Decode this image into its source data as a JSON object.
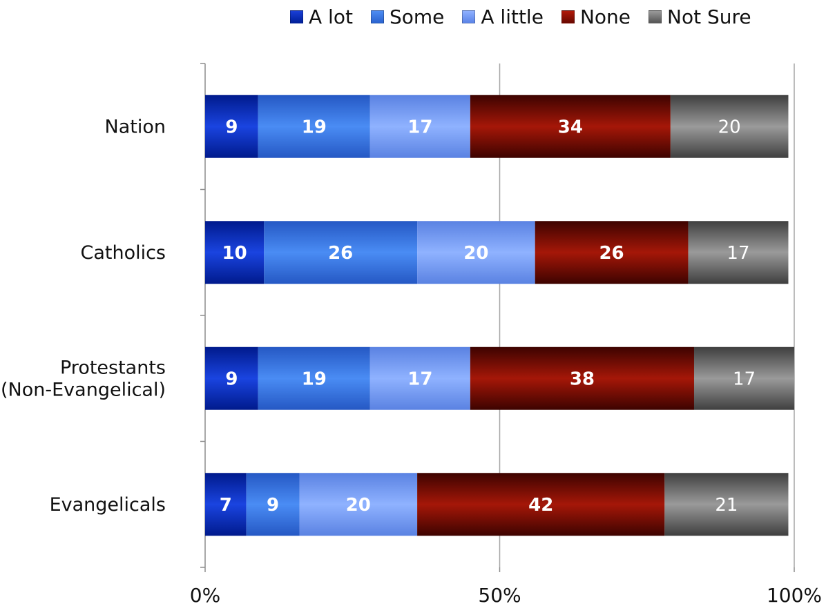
{
  "chart_data": {
    "type": "bar",
    "orientation": "horizontal",
    "stacked": true,
    "categories": [
      "Nation",
      "Catholics",
      "Protestants (Non-Evangelical)",
      "Evangelicals"
    ],
    "category_lines": [
      [
        "Nation"
      ],
      [
        "Catholics"
      ],
      [
        "Protestants",
        "(Non-Evangelical)"
      ],
      [
        "Evangelicals"
      ]
    ],
    "series": [
      {
        "name": "A lot",
        "values": [
          9,
          10,
          9,
          7
        ],
        "color": "#0a2bc0"
      },
      {
        "name": "Some",
        "values": [
          19,
          26,
          19,
          9
        ],
        "color": "#3b78e6"
      },
      {
        "name": "A little",
        "values": [
          17,
          20,
          17,
          20
        ],
        "color": "#7a9ff5"
      },
      {
        "name": "None",
        "values": [
          34,
          26,
          38,
          42
        ],
        "color": "#8f1005"
      },
      {
        "name": "Not Sure",
        "values": [
          20,
          17,
          17,
          21
        ],
        "color": "#7a7a7a"
      }
    ],
    "x_tick_labels": [
      "0%",
      "50%",
      "100%"
    ],
    "xlim": [
      0,
      100
    ],
    "x_ticks": [
      0,
      50,
      100
    ],
    "grid": true,
    "legend_position": "top"
  }
}
